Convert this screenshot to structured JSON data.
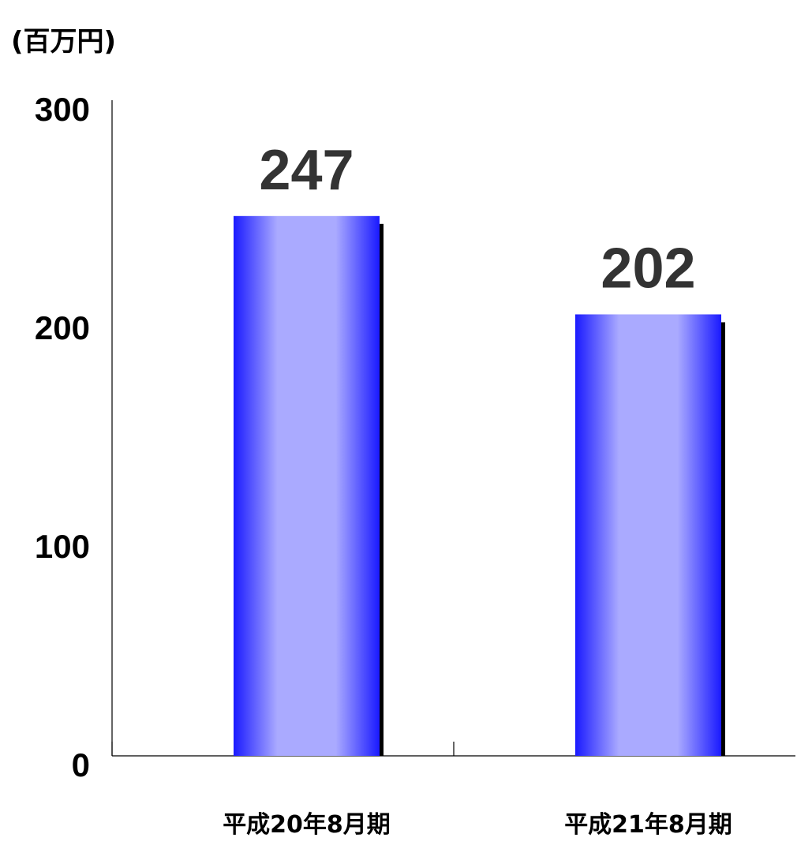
{
  "chart_data": {
    "type": "bar",
    "title": "",
    "xlabel": "",
    "ylabel": "",
    "unit_label": "(百万円)",
    "categories": [
      "平成20年8月期",
      "平成21年8月期"
    ],
    "values": [
      247,
      202
    ],
    "data_labels": [
      "247",
      "202"
    ],
    "ylim": [
      0,
      300
    ],
    "y_ticks": [
      0,
      100,
      200,
      300
    ],
    "y_tick_labels": [
      "0",
      "100",
      "200",
      "300"
    ],
    "grid": false,
    "legend": "none",
    "colors": {
      "bar_edge": "#1a1aff",
      "bar_center": "#aaaaff",
      "bar_shadow": "#000000",
      "data_label": "#333333",
      "axis": "#000000"
    }
  }
}
